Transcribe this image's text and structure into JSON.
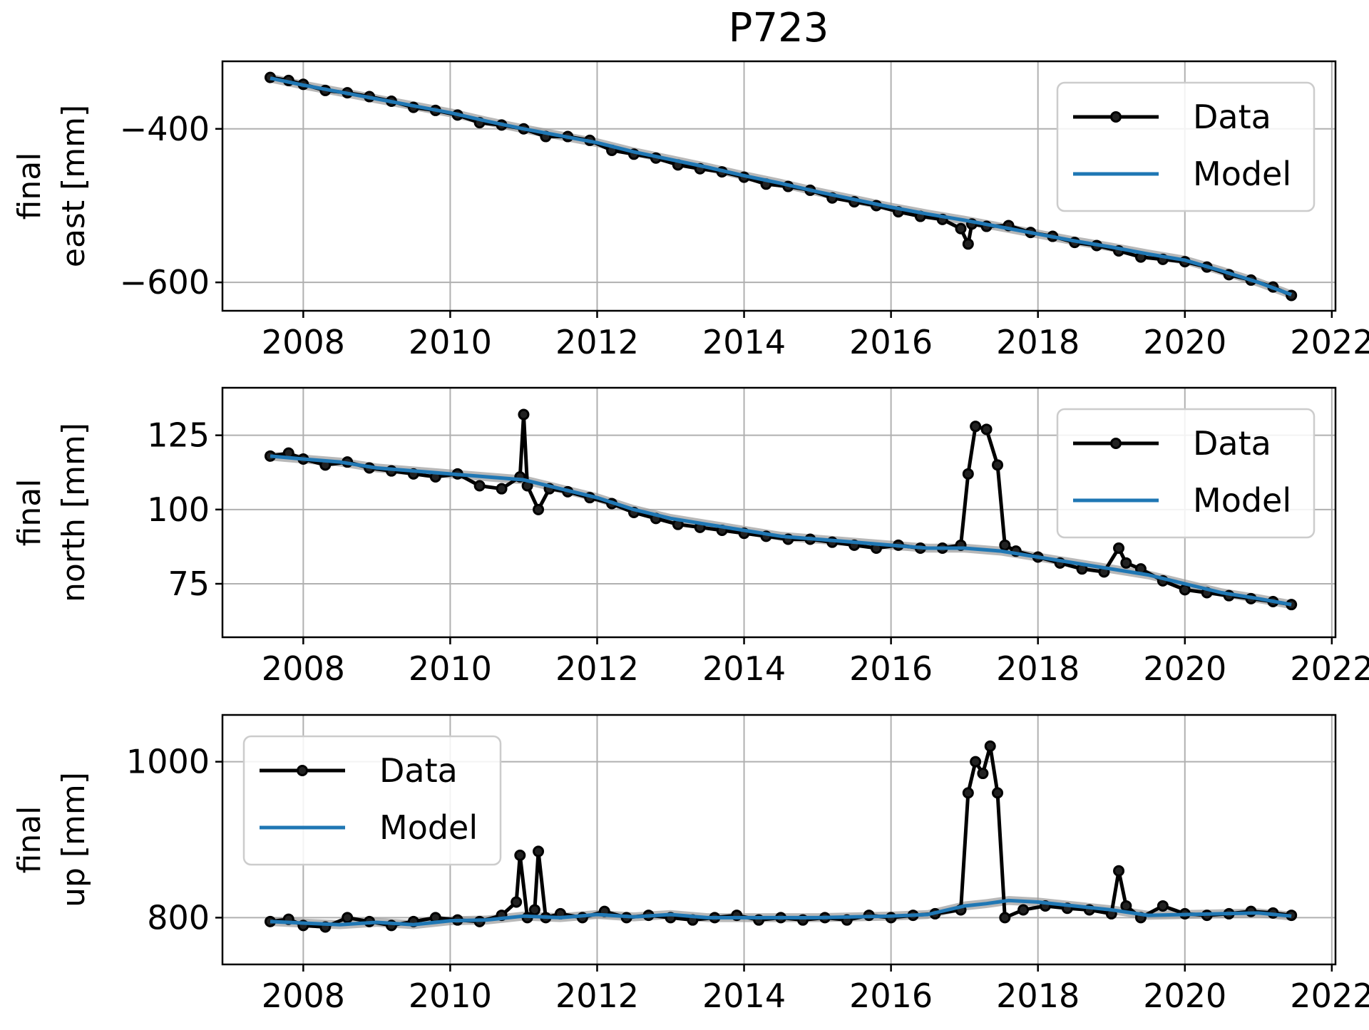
{
  "title": "P723",
  "colors": {
    "data": "#000000",
    "model": "#1f77b4",
    "band": "#9a9a9a",
    "grid": "#b0b0b0"
  },
  "chart_data": [
    {
      "type": "line",
      "ylabel_lines": [
        "final",
        "east [mm]"
      ],
      "xlim": [
        2006.9,
        2022.05
      ],
      "ylim": [
        -637,
        -312
      ],
      "xticks": [
        2008,
        2010,
        2012,
        2014,
        2016,
        2018,
        2020,
        2022
      ],
      "xtick_labels": [
        "2008",
        "2010",
        "2012",
        "2014",
        "2016",
        "2018",
        "2020",
        "2022"
      ],
      "yticks": [
        -400,
        -600
      ],
      "ytick_labels": [
        "−400",
        "−600"
      ],
      "grid": true,
      "legend": {
        "placement": "top-right",
        "entries": [
          "Data",
          "Model"
        ]
      },
      "series": [
        {
          "name": "Data",
          "style": "line-with-markers",
          "x": [
            2007.55,
            2007.8,
            2008.0,
            2008.3,
            2008.6,
            2008.9,
            2009.2,
            2009.5,
            2009.8,
            2010.1,
            2010.4,
            2010.7,
            2011.0,
            2011.3,
            2011.6,
            2011.9,
            2012.2,
            2012.5,
            2012.8,
            2013.1,
            2013.4,
            2013.7,
            2014.0,
            2014.3,
            2014.6,
            2014.9,
            2015.2,
            2015.5,
            2015.8,
            2016.1,
            2016.4,
            2016.7,
            2016.95,
            2017.05,
            2017.1,
            2017.3,
            2017.6,
            2017.9,
            2018.2,
            2018.5,
            2018.8,
            2019.1,
            2019.4,
            2019.7,
            2020.0,
            2020.3,
            2020.6,
            2020.9,
            2021.2,
            2021.45
          ],
          "y": [
            -333,
            -337,
            -342,
            -350,
            -353,
            -358,
            -364,
            -372,
            -376,
            -382,
            -392,
            -395,
            -400,
            -410,
            -410,
            -415,
            -428,
            -433,
            -438,
            -447,
            -452,
            -456,
            -463,
            -472,
            -475,
            -480,
            -490,
            -495,
            -500,
            -508,
            -514,
            -518,
            -530,
            -550,
            -524,
            -527,
            -526,
            -535,
            -540,
            -548,
            -552,
            -559,
            -567,
            -570,
            -573,
            -580,
            -590,
            -597,
            -606,
            -617
          ]
        },
        {
          "name": "Model",
          "style": "line",
          "x": [
            2007.55,
            2008.0,
            2008.5,
            2009.0,
            2009.5,
            2010.0,
            2010.5,
            2011.0,
            2011.5,
            2012.0,
            2012.5,
            2013.0,
            2013.5,
            2014.0,
            2014.5,
            2015.0,
            2015.5,
            2016.0,
            2016.5,
            2017.0,
            2017.5,
            2018.0,
            2018.5,
            2019.0,
            2019.5,
            2020.0,
            2020.5,
            2021.0,
            2021.45
          ],
          "y": [
            -334,
            -343,
            -352,
            -361,
            -370,
            -379,
            -390,
            -400,
            -409,
            -418,
            -430,
            -440,
            -450,
            -461,
            -471,
            -482,
            -492,
            -502,
            -511,
            -519,
            -528,
            -537,
            -546,
            -554,
            -563,
            -571,
            -585,
            -600,
            -616
          ]
        }
      ]
    },
    {
      "type": "line",
      "ylabel_lines": [
        "final",
        "north [mm]"
      ],
      "xlim": [
        2006.9,
        2022.05
      ],
      "ylim": [
        57,
        141
      ],
      "xticks": [
        2008,
        2010,
        2012,
        2014,
        2016,
        2018,
        2020,
        2022
      ],
      "xtick_labels": [
        "2008",
        "2010",
        "2012",
        "2014",
        "2016",
        "2018",
        "2020",
        "2022"
      ],
      "yticks": [
        125,
        100,
        75
      ],
      "ytick_labels": [
        "125",
        "100",
        "75"
      ],
      "grid": true,
      "legend": {
        "placement": "top-right",
        "entries": [
          "Data",
          "Model"
        ]
      },
      "series": [
        {
          "name": "Data",
          "style": "line-with-markers",
          "x": [
            2007.55,
            2007.8,
            2008.0,
            2008.3,
            2008.6,
            2008.9,
            2009.2,
            2009.5,
            2009.8,
            2010.1,
            2010.4,
            2010.7,
            2010.95,
            2011.0,
            2011.05,
            2011.2,
            2011.35,
            2011.6,
            2011.9,
            2012.2,
            2012.5,
            2012.8,
            2013.1,
            2013.4,
            2013.7,
            2014.0,
            2014.3,
            2014.6,
            2014.9,
            2015.2,
            2015.5,
            2015.8,
            2016.1,
            2016.4,
            2016.7,
            2016.95,
            2017.05,
            2017.15,
            2017.3,
            2017.45,
            2017.55,
            2017.7,
            2018.0,
            2018.3,
            2018.6,
            2018.9,
            2019.1,
            2019.2,
            2019.4,
            2019.7,
            2020.0,
            2020.3,
            2020.6,
            2020.9,
            2021.2,
            2021.45
          ],
          "y": [
            118,
            119,
            117,
            115,
            116,
            114,
            113,
            112,
            111,
            112,
            108,
            107,
            111,
            132,
            108,
            100,
            107,
            106,
            104,
            102,
            99,
            97,
            95,
            94,
            93,
            92,
            91,
            90,
            90,
            89,
            88,
            87,
            88,
            87,
            87,
            88,
            112,
            128,
            127,
            115,
            88,
            86,
            84,
            82,
            80,
            79,
            87,
            82,
            80,
            76,
            73,
            72,
            71,
            70,
            69,
            68
          ]
        },
        {
          "name": "Model",
          "style": "line",
          "x": [
            2007.55,
            2008.0,
            2008.5,
            2009.0,
            2009.5,
            2010.0,
            2010.5,
            2011.0,
            2011.5,
            2012.0,
            2012.5,
            2013.0,
            2013.5,
            2014.0,
            2014.5,
            2015.0,
            2015.5,
            2016.0,
            2016.5,
            2017.0,
            2017.5,
            2018.0,
            2018.5,
            2019.0,
            2019.5,
            2020.0,
            2020.5,
            2021.0,
            2021.45
          ],
          "y": [
            118,
            117,
            116,
            114,
            113,
            112,
            111,
            110,
            107,
            104,
            100,
            97,
            95,
            93,
            91,
            90,
            89,
            88,
            87,
            87,
            86,
            84,
            82,
            80,
            78,
            75,
            72,
            70,
            68
          ]
        }
      ]
    },
    {
      "type": "line",
      "ylabel_lines": [
        "final",
        "up [mm]"
      ],
      "xlim": [
        2006.9,
        2022.05
      ],
      "ylim": [
        740,
        1060
      ],
      "xticks": [
        2008,
        2010,
        2012,
        2014,
        2016,
        2018,
        2020,
        2022
      ],
      "xtick_labels": [
        "2008",
        "2010",
        "2012",
        "2014",
        "2016",
        "2018",
        "2020",
        "2022"
      ],
      "yticks": [
        1000,
        800
      ],
      "ytick_labels": [
        "1000",
        "800"
      ],
      "grid": true,
      "legend": {
        "placement": "top-left",
        "entries": [
          "Data",
          "Model"
        ]
      },
      "series": [
        {
          "name": "Data",
          "style": "line-with-markers",
          "x": [
            2007.55,
            2007.8,
            2008.0,
            2008.3,
            2008.6,
            2008.9,
            2009.2,
            2009.5,
            2009.8,
            2010.1,
            2010.4,
            2010.7,
            2010.9,
            2010.95,
            2011.05,
            2011.15,
            2011.2,
            2011.3,
            2011.5,
            2011.8,
            2012.1,
            2012.4,
            2012.7,
            2013.0,
            2013.3,
            2013.6,
            2013.9,
            2014.2,
            2014.5,
            2014.8,
            2015.1,
            2015.4,
            2015.7,
            2016.0,
            2016.3,
            2016.6,
            2016.95,
            2017.05,
            2017.15,
            2017.25,
            2017.35,
            2017.45,
            2017.55,
            2017.8,
            2018.1,
            2018.4,
            2018.7,
            2019.0,
            2019.1,
            2019.2,
            2019.4,
            2019.7,
            2020.0,
            2020.3,
            2020.6,
            2020.9,
            2021.2,
            2021.45
          ],
          "y": [
            795,
            798,
            790,
            788,
            800,
            795,
            790,
            795,
            800,
            797,
            795,
            803,
            820,
            880,
            800,
            810,
            885,
            800,
            805,
            800,
            808,
            800,
            803,
            800,
            797,
            800,
            803,
            797,
            800,
            797,
            800,
            797,
            803,
            800,
            803,
            805,
            810,
            960,
            1000,
            985,
            1020,
            960,
            800,
            810,
            815,
            812,
            810,
            805,
            860,
            815,
            800,
            815,
            805,
            803,
            805,
            808,
            806,
            803
          ]
        },
        {
          "name": "Model",
          "style": "line",
          "x": [
            2007.55,
            2008.0,
            2008.5,
            2009.0,
            2009.5,
            2010.0,
            2010.5,
            2011.0,
            2011.5,
            2012.0,
            2012.5,
            2013.0,
            2013.5,
            2014.0,
            2014.5,
            2015.0,
            2015.5,
            2016.0,
            2016.5,
            2017.0,
            2017.3,
            2017.6,
            2018.0,
            2018.5,
            2019.0,
            2019.5,
            2020.0,
            2020.5,
            2021.0,
            2021.45
          ],
          "y": [
            795,
            793,
            791,
            794,
            791,
            796,
            797,
            802,
            800,
            804,
            801,
            804,
            800,
            800,
            800,
            800,
            801,
            802,
            804,
            815,
            818,
            822,
            820,
            815,
            810,
            803,
            804,
            805,
            806,
            802
          ]
        }
      ]
    }
  ]
}
